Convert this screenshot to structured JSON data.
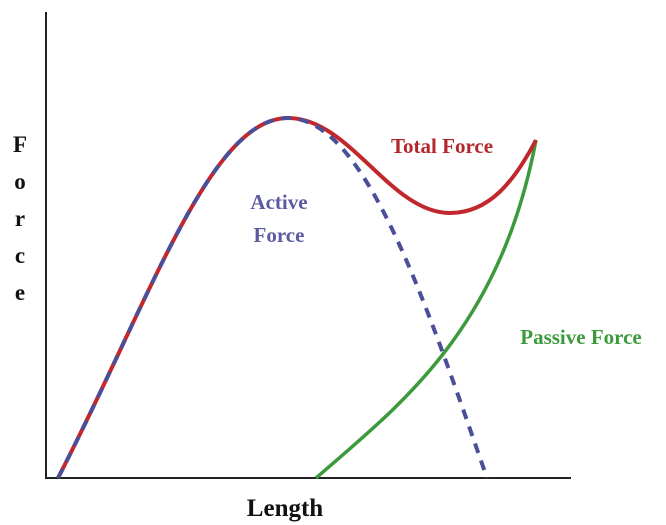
{
  "y_axis_label": "Force",
  "x_axis_label": "Length",
  "curves": [
    {
      "label_lines": [
        "Total Force"
      ]
    },
    {
      "label_lines": [
        "Active",
        "Force"
      ]
    },
    {
      "label_lines": [
        "Passive Force"
      ]
    }
  ]
}
